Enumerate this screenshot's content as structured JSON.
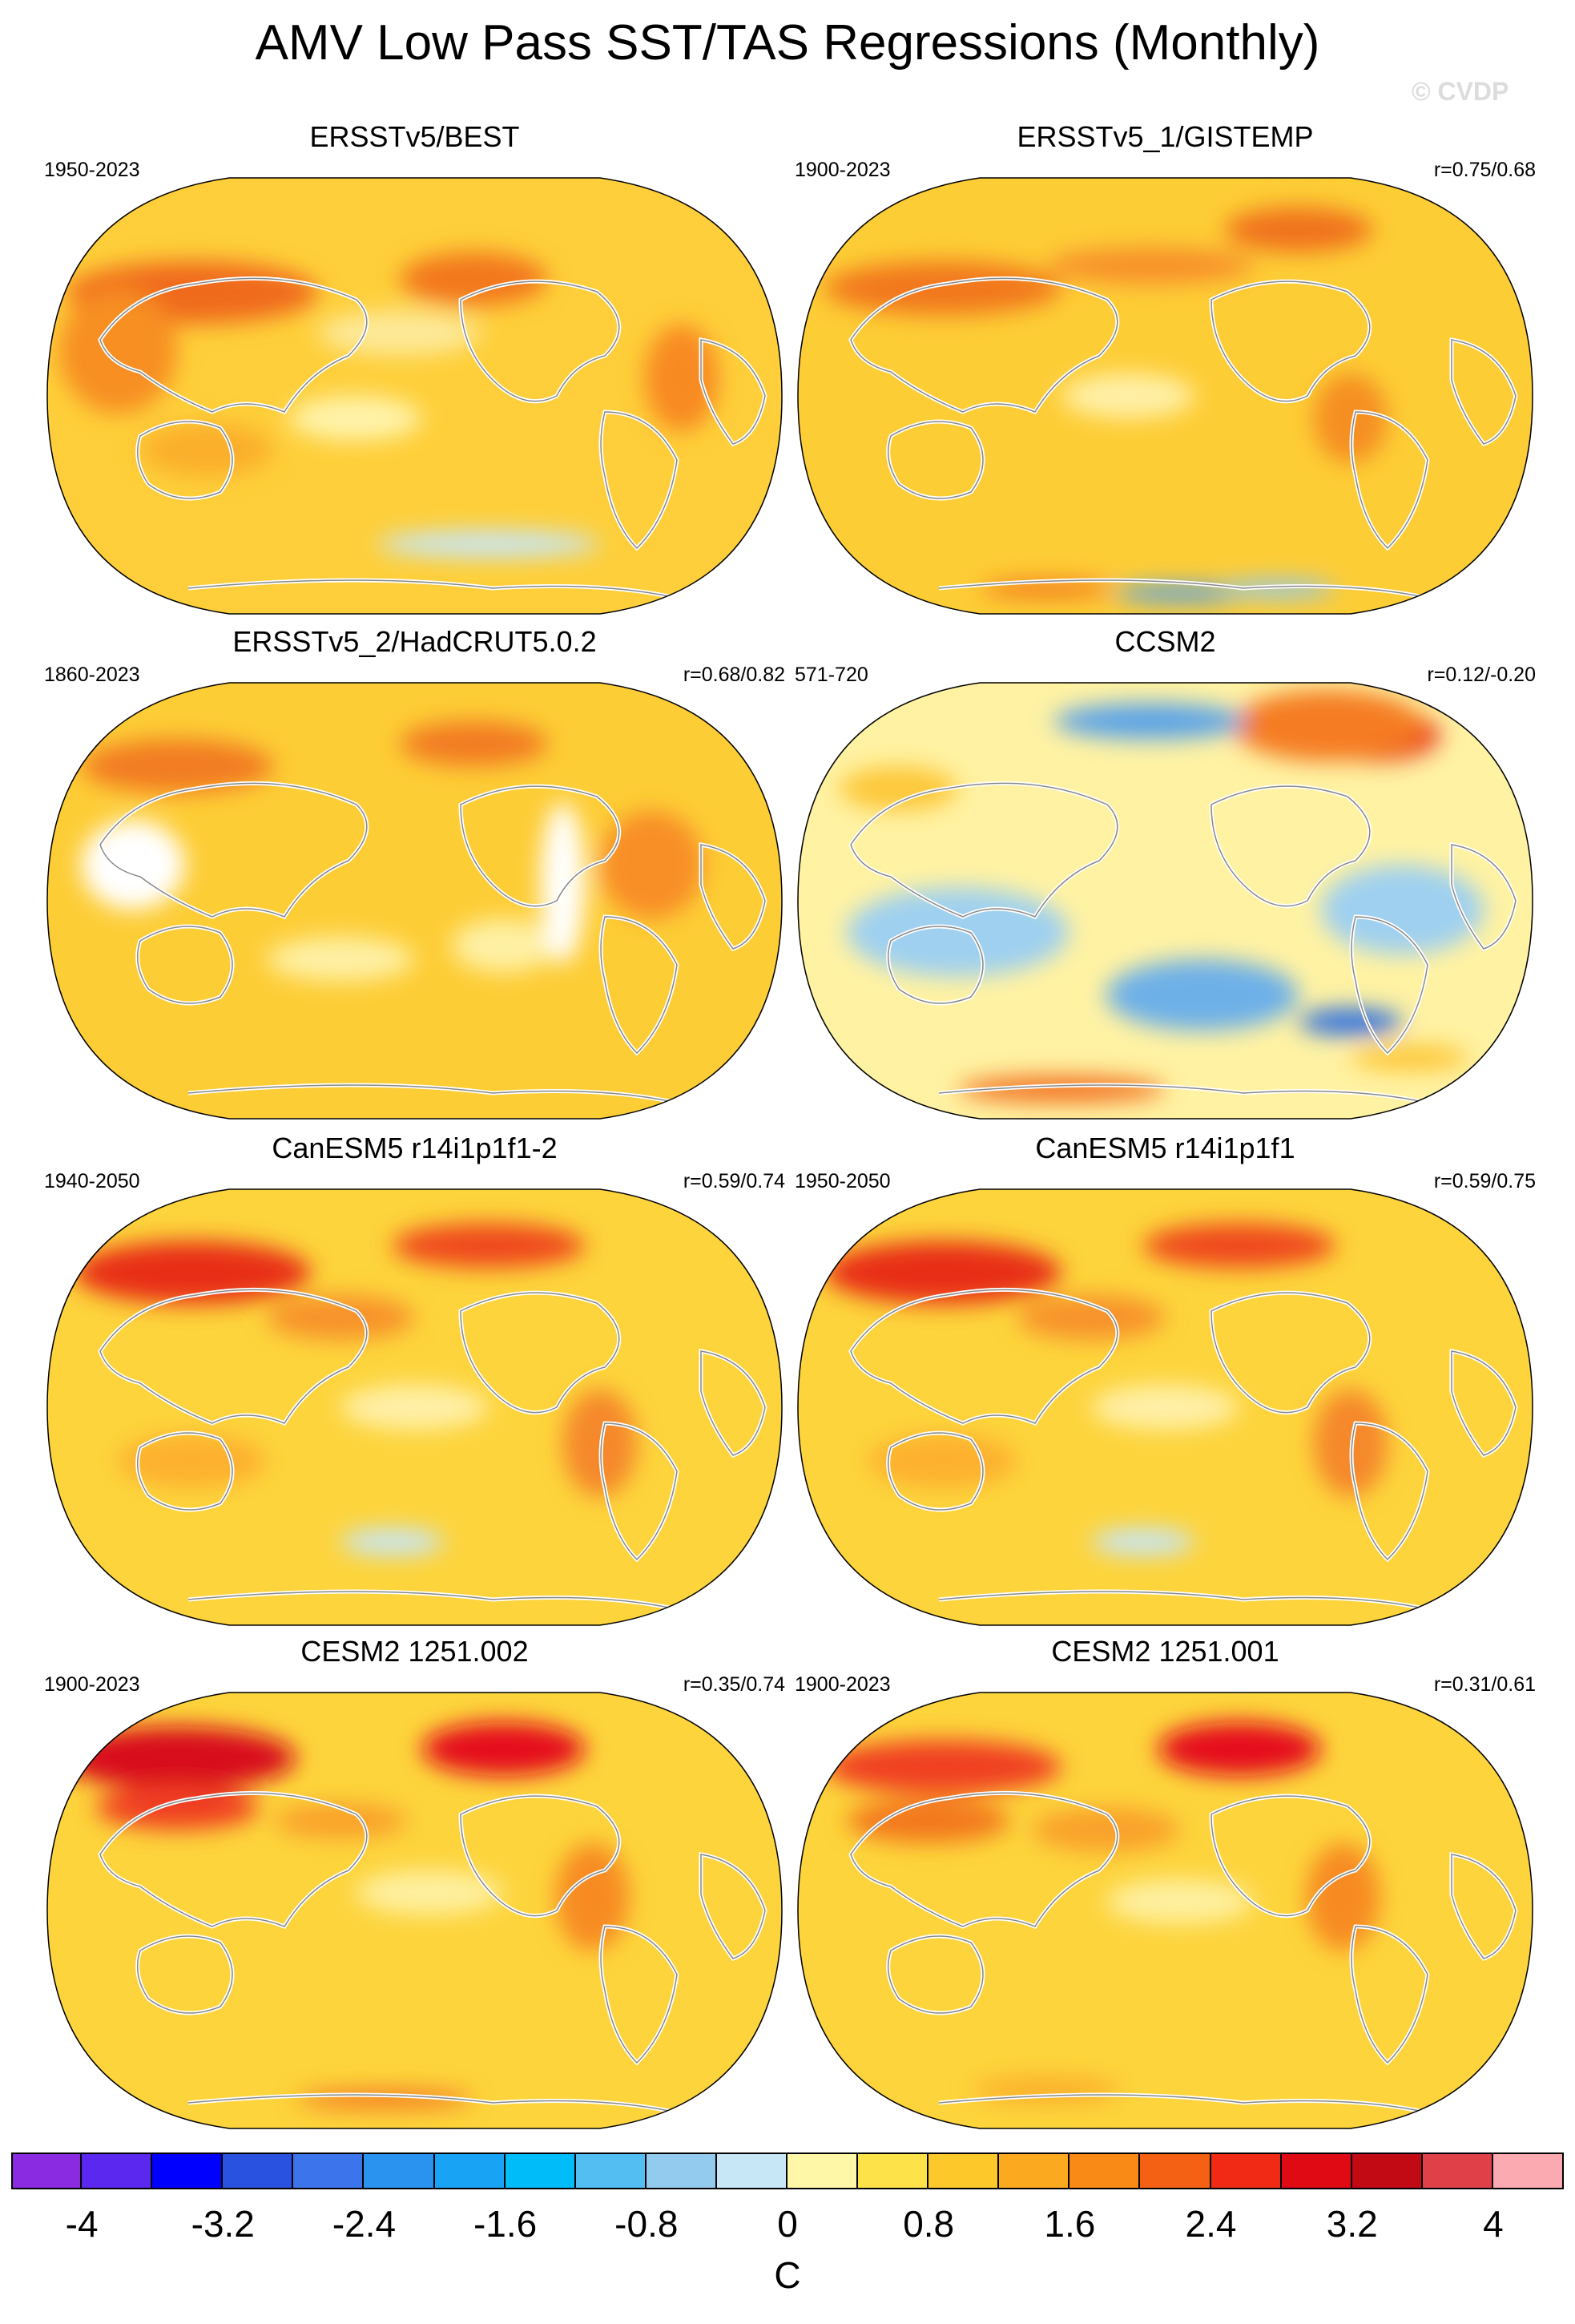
{
  "title": "AMV Low Pass SST/TAS Regressions (Monthly)",
  "watermark": "© CVDP",
  "panels": [
    {
      "title": "ERSSTv5/BEST",
      "period": "1950-2023",
      "corr": "",
      "base": "#fecf3a",
      "spots": [
        [
          "#f06a1e",
          0.2,
          0.27,
          0.17,
          0.07
        ],
        [
          "#f78f22",
          0.1,
          0.4,
          0.08,
          0.14
        ],
        [
          "#f3781e",
          0.58,
          0.24,
          0.1,
          0.06
        ],
        [
          "#f88a20",
          0.86,
          0.46,
          0.05,
          0.12
        ],
        [
          "#fde99a",
          0.48,
          0.36,
          0.11,
          0.05
        ],
        [
          "#fff3aa",
          0.42,
          0.55,
          0.09,
          0.05
        ],
        [
          "#c7e6f6",
          0.6,
          0.83,
          0.15,
          0.03
        ],
        [
          "#fbaf2c",
          0.22,
          0.62,
          0.09,
          0.06
        ]
      ]
    },
    {
      "title": "ERSSTv5_1/GISTEMP",
      "period": "1900-2023",
      "corr": "r=0.75/0.68",
      "base": "#fdcd36",
      "spots": [
        [
          "#f2781f",
          0.2,
          0.26,
          0.16,
          0.06
        ],
        [
          "#f7902a",
          0.48,
          0.21,
          0.14,
          0.04
        ],
        [
          "#f58f22",
          0.75,
          0.55,
          0.05,
          0.1
        ],
        [
          "#f0721c",
          0.68,
          0.13,
          0.1,
          0.05
        ],
        [
          "#fff0a8",
          0.45,
          0.5,
          0.09,
          0.05
        ],
        [
          "#5aa3e8",
          0.52,
          0.94,
          0.09,
          0.02
        ],
        [
          "#8cc9f0",
          0.65,
          0.93,
          0.08,
          0.02
        ],
        [
          "#f3781e",
          0.34,
          0.93,
          0.09,
          0.02
        ]
      ]
    },
    {
      "title": "ERSSTv5_2/HadCRUT5.0.2",
      "period": "1860-2023",
      "corr": "r=0.68/0.82",
      "base": "#fdcd36",
      "spots": [
        [
          "#f27c22",
          0.18,
          0.2,
          0.13,
          0.06
        ],
        [
          "#f27c22",
          0.58,
          0.15,
          0.1,
          0.05
        ],
        [
          "#f88e26",
          0.82,
          0.42,
          0.07,
          0.12
        ],
        [
          "#fef0a4",
          0.62,
          0.6,
          0.07,
          0.06
        ],
        [
          "#fef0a4",
          0.4,
          0.63,
          0.1,
          0.05
        ],
        [
          "#ffffff",
          0.12,
          0.42,
          0.07,
          0.1
        ],
        [
          "#ffffff",
          0.7,
          0.46,
          0.03,
          0.18
        ]
      ]
    },
    {
      "title": "CCSM2",
      "period": "571-720",
      "corr": "r=0.12/-0.20",
      "base": "#fff2a3",
      "spots": [
        [
          "#e8231a",
          0.78,
          0.13,
          0.09,
          0.06
        ],
        [
          "#f57b20",
          0.72,
          0.11,
          0.13,
          0.08
        ],
        [
          "#5aa3e8",
          0.48,
          0.1,
          0.13,
          0.04
        ],
        [
          "#9fd0f0",
          0.22,
          0.57,
          0.15,
          0.1
        ],
        [
          "#6db0e8",
          0.55,
          0.71,
          0.13,
          0.08
        ],
        [
          "#2f6fe0",
          0.75,
          0.77,
          0.07,
          0.03
        ],
        [
          "#9fd0f0",
          0.82,
          0.52,
          0.11,
          0.1
        ],
        [
          "#f37320",
          0.36,
          0.92,
          0.14,
          0.03
        ],
        [
          "#fdc83a",
          0.14,
          0.25,
          0.08,
          0.05
        ],
        [
          "#fdc83a",
          0.83,
          0.85,
          0.08,
          0.03
        ]
      ]
    },
    {
      "title": "CanESM5 r14i1p1f1-2",
      "period": "1940-2050",
      "corr": "r=0.59/0.74",
      "base": "#fdd43c",
      "spots": [
        [
          "#e82f18",
          0.2,
          0.2,
          0.16,
          0.07
        ],
        [
          "#ef4a1c",
          0.6,
          0.14,
          0.13,
          0.05
        ],
        [
          "#f5882a",
          0.75,
          0.58,
          0.05,
          0.12
        ],
        [
          "#f7922a",
          0.4,
          0.3,
          0.1,
          0.05
        ],
        [
          "#fdb02e",
          0.2,
          0.62,
          0.1,
          0.06
        ],
        [
          "#c7e6f6",
          0.47,
          0.8,
          0.07,
          0.03
        ],
        [
          "#fff0a8",
          0.5,
          0.5,
          0.1,
          0.05
        ]
      ]
    },
    {
      "title": "CanESM5 r14i1p1f1",
      "period": "1950-2050",
      "corr": "r=0.59/0.75",
      "base": "#fdd43c",
      "spots": [
        [
          "#e82f18",
          0.2,
          0.2,
          0.16,
          0.07
        ],
        [
          "#ef4a1c",
          0.6,
          0.14,
          0.13,
          0.05
        ],
        [
          "#f5882a",
          0.75,
          0.58,
          0.05,
          0.12
        ],
        [
          "#f7922a",
          0.4,
          0.3,
          0.1,
          0.05
        ],
        [
          "#fdb02e",
          0.2,
          0.62,
          0.1,
          0.06
        ],
        [
          "#c7e6f6",
          0.47,
          0.8,
          0.07,
          0.03
        ],
        [
          "#fff0a8",
          0.5,
          0.5,
          0.1,
          0.05
        ]
      ]
    },
    {
      "title": "CESM2 1251.002",
      "period": "1900-2023",
      "corr": "r=0.35/0.74",
      "base": "#fdd43c",
      "spots": [
        [
          "#d8101c",
          0.18,
          0.16,
          0.16,
          0.07
        ],
        [
          "#e5101a",
          0.62,
          0.14,
          0.11,
          0.06
        ],
        [
          "#f04020",
          0.18,
          0.27,
          0.11,
          0.05
        ],
        [
          "#f78b22",
          0.74,
          0.47,
          0.05,
          0.12
        ],
        [
          "#f9a12c",
          0.4,
          0.3,
          0.09,
          0.04
        ],
        [
          "#fef0a0",
          0.52,
          0.46,
          0.1,
          0.05
        ],
        [
          "#f37320",
          0.46,
          0.92,
          0.12,
          0.02
        ]
      ]
    },
    {
      "title": "CESM2 1251.001",
      "period": "1900-2023",
      "corr": "r=0.31/0.61",
      "base": "#fdd43c",
      "spots": [
        [
          "#e5101a",
          0.6,
          0.14,
          0.11,
          0.06
        ],
        [
          "#f04020",
          0.2,
          0.18,
          0.16,
          0.06
        ],
        [
          "#f3781e",
          0.18,
          0.3,
          0.11,
          0.05
        ],
        [
          "#f78b22",
          0.74,
          0.47,
          0.05,
          0.12
        ],
        [
          "#f9a12c",
          0.42,
          0.32,
          0.1,
          0.05
        ],
        [
          "#fef0a0",
          0.52,
          0.48,
          0.1,
          0.05
        ],
        [
          "#fbaf2c",
          0.34,
          0.9,
          0.1,
          0.03
        ]
      ]
    }
  ],
  "colorbar": {
    "label": "C",
    "colors": [
      "#8a2be2",
      "#5a28ef",
      "#0000ff",
      "#2a52e0",
      "#3c74ec",
      "#2a93f0",
      "#19a3f4",
      "#00bcf8",
      "#52bef2",
      "#93cbee",
      "#c7e6f6",
      "#fff7a8",
      "#fde24a",
      "#fdc82a",
      "#fbaa20",
      "#f88a15",
      "#f46014",
      "#f02a14",
      "#e00a14",
      "#c20a14",
      "#e04048",
      "#fcaab2"
    ],
    "tick_labels": [
      "-4",
      "-3.2",
      "-2.4",
      "-1.6",
      "-0.8",
      "0",
      "0.8",
      "1.6",
      "2.4",
      "3.2",
      "4"
    ]
  }
}
